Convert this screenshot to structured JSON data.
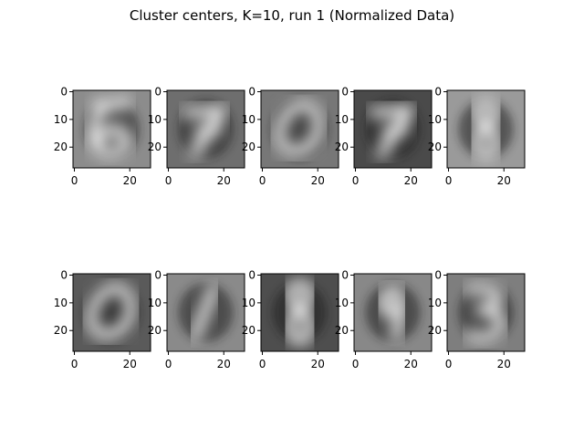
{
  "chart_data": {
    "type": "image-grid",
    "title": "Cluster centers, K=10, run 1 (Normalized Data)",
    "rows": 2,
    "cols": 5,
    "colormap": "gray",
    "x_ticks": [
      0,
      20
    ],
    "y_ticks": [
      0,
      10,
      20
    ],
    "xlim": [
      -0.5,
      27.5
    ],
    "ylim": [
      27.5,
      -0.5
    ],
    "panels": [
      {
        "digit": "6",
        "bg": "#8c8c8c"
      },
      {
        "digit": "7",
        "bg": "#6e6e6e"
      },
      {
        "digit": "0",
        "bg": "#777777"
      },
      {
        "digit": "7",
        "bg": "#4a4a4a"
      },
      {
        "digit": "8",
        "bg": "#9a9a9a"
      },
      {
        "digit": "0",
        "bg": "#5a5a5a"
      },
      {
        "digit": "1",
        "bg": "#8a8a8a"
      },
      {
        "digit": "8",
        "bg": "#4e4e4e"
      },
      {
        "digit": "9",
        "bg": "#888888"
      },
      {
        "digit": "3",
        "bg": "#7e7e7e"
      }
    ]
  }
}
